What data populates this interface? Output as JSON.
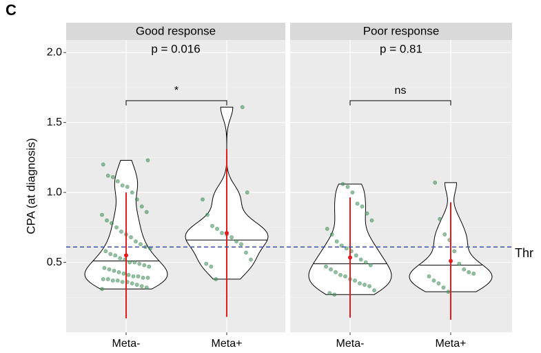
{
  "chart_data": {
    "type": "violin",
    "panel_label": "C",
    "y_label": "CPA (at diagnosis)",
    "ylim": [
      0.0,
      2.09
    ],
    "yticks": [
      0.5,
      {
        "value": 1.0,
        "label": "1.0"
      },
      1.5,
      {
        "value": 2.0,
        "label": "2.0"
      }
    ],
    "minor_yticks": [
      0.25,
      0.75,
      1.25,
      1.75
    ],
    "grid": true,
    "threshold": 0.61,
    "threshold_label": "Thr",
    "threshold_color": "#3a52a8",
    "point_color": "#3d8c56",
    "summary_color": "#e41a1c",
    "facets": [
      {
        "title": "Good response",
        "p_label": "p = 0.016",
        "significance": "*",
        "groups": [
          {
            "name": "Meta-",
            "median": 0.51,
            "mean": 0.55,
            "sd": 0.45,
            "points": [
              0.31,
              0.32,
              0.33,
              0.34,
              0.35,
              0.36,
              0.36,
              0.37,
              0.37,
              0.38,
              0.38,
              0.39,
              0.39,
              0.4,
              0.4,
              0.41,
              0.42,
              0.43,
              0.44,
              0.45,
              0.46,
              0.47,
              0.48,
              0.49,
              0.5,
              0.5,
              0.52,
              0.53,
              0.55,
              0.56,
              0.58,
              0.6,
              0.61,
              0.63,
              0.65,
              0.68,
              0.7,
              0.72,
              0.75,
              0.78,
              0.8,
              0.84,
              0.86,
              0.9,
              0.95,
              1.0,
              1.04,
              1.05,
              1.08,
              1.11,
              1.12,
              1.2,
              1.23
            ]
          },
          {
            "name": "Meta+",
            "median": 0.66,
            "mean": 0.71,
            "sd": 0.6,
            "points": [
              0.38,
              0.47,
              0.49,
              0.52,
              0.57,
              0.63,
              0.65,
              0.68,
              0.7,
              0.71,
              0.74,
              0.76,
              0.84,
              0.95,
              1.0,
              1.61
            ]
          }
        ]
      },
      {
        "title": "Poor response",
        "p_label": "p = 0.81",
        "significance": "ns",
        "groups": [
          {
            "name": "Meta-",
            "median": 0.49,
            "mean": 0.535,
            "sd": 0.43,
            "points": [
              0.27,
              0.28,
              0.3,
              0.33,
              0.34,
              0.35,
              0.37,
              0.38,
              0.4,
              0.41,
              0.43,
              0.45,
              0.47,
              0.48,
              0.5,
              0.52,
              0.55,
              0.58,
              0.6,
              0.62,
              0.65,
              0.7,
              0.74,
              0.8,
              0.85,
              0.9,
              0.92,
              1.0,
              1.04,
              1.06
            ]
          },
          {
            "name": "Meta+",
            "median": 0.48,
            "mean": 0.51,
            "sd": 0.42,
            "points": [
              0.29,
              0.32,
              0.35,
              0.37,
              0.4,
              0.42,
              0.43,
              0.45,
              0.49,
              0.58,
              0.66,
              0.7,
              0.81,
              1.07
            ]
          }
        ]
      }
    ]
  }
}
